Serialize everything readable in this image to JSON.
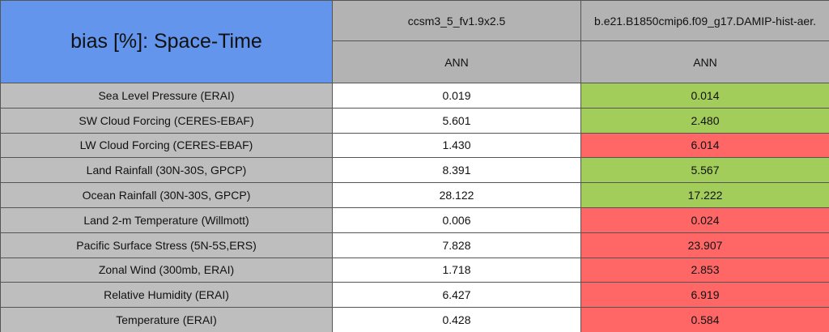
{
  "header": {
    "title": "bias [%]: Space-Time",
    "columns": [
      {
        "case": "ccsm3_5_fv1.9x2.5",
        "season": "ANN"
      },
      {
        "case": "b.e21.B1850cmip6.f09_g17.DAMIP-hist-aer.",
        "season": "ANN"
      }
    ]
  },
  "table": {
    "highlight_colors": {
      "better": "#a2cd5a",
      "worse": "#ff6666"
    },
    "rows": [
      {
        "label": "Sea Level Pressure (ERAI)",
        "values": [
          "0.019",
          "0.014"
        ],
        "status": "better"
      },
      {
        "label": "SW Cloud Forcing (CERES-EBAF)",
        "values": [
          "5.601",
          "2.480"
        ],
        "status": "better"
      },
      {
        "label": "LW Cloud Forcing (CERES-EBAF)",
        "values": [
          "1.430",
          "6.014"
        ],
        "status": "worse"
      },
      {
        "label": "Land Rainfall (30N-30S, GPCP)",
        "values": [
          "8.391",
          "5.567"
        ],
        "status": "better"
      },
      {
        "label": "Ocean Rainfall (30N-30S, GPCP)",
        "values": [
          "28.122",
          "17.222"
        ],
        "status": "better"
      },
      {
        "label": "Land 2-m Temperature (Willmott)",
        "values": [
          "0.006",
          "0.024"
        ],
        "status": "worse"
      },
      {
        "label": "Pacific Surface Stress (5N-5S,ERS)",
        "values": [
          "7.828",
          "23.907"
        ],
        "status": "worse"
      },
      {
        "label": "Zonal Wind (300mb, ERAI)",
        "values": [
          "1.718",
          "2.853"
        ],
        "status": "worse"
      },
      {
        "label": "Relative Humidity (ERAI)",
        "values": [
          "6.427",
          "6.919"
        ],
        "status": "worse"
      },
      {
        "label": "Temperature (ERAI)",
        "values": [
          "0.428",
          "0.584"
        ],
        "status": "worse"
      }
    ]
  }
}
